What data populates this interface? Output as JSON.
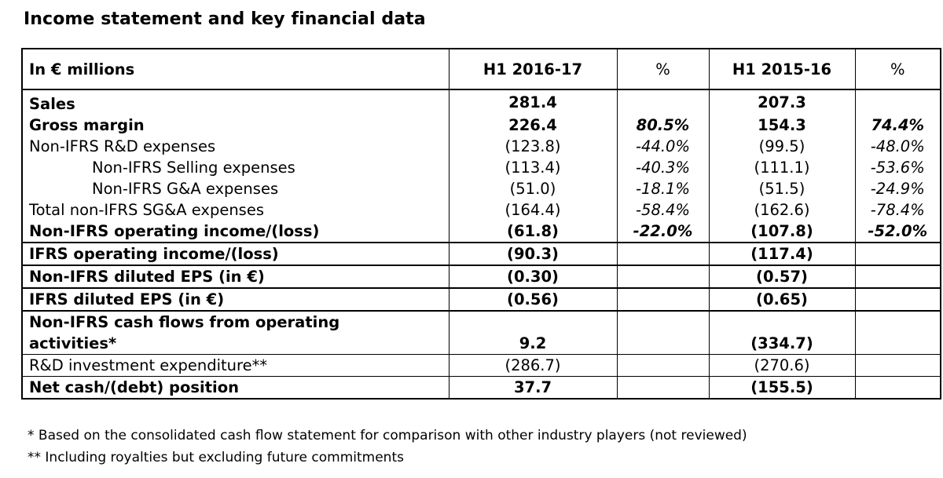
{
  "title": "Income statement and key financial data",
  "table": {
    "headers": {
      "label": "In € millions",
      "period1": "H1 2016-17",
      "pct1": "%",
      "period2": "H1 2015-16",
      "pct2": "%"
    },
    "rows": [
      {
        "label": "Sales",
        "v1": "281.4",
        "p1": "",
        "v2": "207.3",
        "p2": ""
      },
      {
        "label": "Gross margin",
        "v1": "226.4",
        "p1": "80.5%",
        "v2": "154.3",
        "p2": "74.4%"
      },
      {
        "label": "Non-IFRS R&D expenses",
        "v1": "(123.8)",
        "p1": "-44.0%",
        "v2": "(99.5)",
        "p2": "-48.0%"
      },
      {
        "label": "Non-IFRS Selling expenses",
        "v1": "(113.4)",
        "p1": "-40.3%",
        "v2": "(111.1)",
        "p2": "-53.6%"
      },
      {
        "label": "Non-IFRS G&A expenses",
        "v1": "(51.0)",
        "p1": "-18.1%",
        "v2": "(51.5)",
        "p2": "-24.9%"
      },
      {
        "label": "Total non-IFRS SG&A expenses",
        "v1": "(164.4)",
        "p1": "-58.4%",
        "v2": "(162.6)",
        "p2": "-78.4%"
      },
      {
        "label": "Non-IFRS operating income/(loss)",
        "v1": "(61.8)",
        "p1": "-22.0%",
        "v2": "(107.8)",
        "p2": "-52.0%"
      },
      {
        "label": "IFRS operating income/(loss)",
        "v1": "(90.3)",
        "p1": "",
        "v2": "(117.4)",
        "p2": ""
      },
      {
        "label": "Non-IFRS diluted EPS (in €)",
        "v1": "(0.30)",
        "p1": "",
        "v2": "(0.57)",
        "p2": ""
      },
      {
        "label": "IFRS diluted EPS (in €)",
        "v1": "(0.56)",
        "p1": "",
        "v2": "(0.65)",
        "p2": ""
      },
      {
        "label_line1": "Non-IFRS cash flows from operating",
        "label_line2": "activities*",
        "v1": "9.2",
        "p1": "",
        "v2": "(334.7)",
        "p2": ""
      },
      {
        "label": "R&D investment expenditure**",
        "v1": "(286.7)",
        "p1": "",
        "v2": "(270.6)",
        "p2": ""
      },
      {
        "label": "Net cash/(debt) position",
        "v1": "37.7",
        "p1": "",
        "v2": "(155.5)",
        "p2": ""
      }
    ]
  },
  "footnotes": [
    "* Based on the consolidated cash flow statement for comparison with other industry players (not reviewed)",
    "** Including royalties but excluding future commitments"
  ]
}
